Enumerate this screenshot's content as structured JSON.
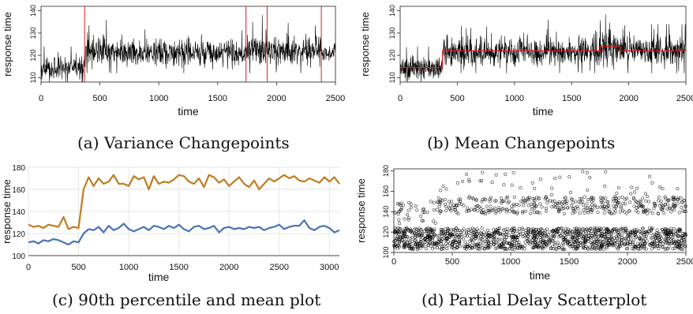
{
  "captions": {
    "a": "(a) Variance Changepoints",
    "b": "(b) Mean Changepoints",
    "c": "(c) 90th percentile and mean plot",
    "d": "(d) Partial Delay Scatterplot"
  },
  "chart_data": [
    {
      "id": "a",
      "type": "line",
      "title": "",
      "xlabel": "time",
      "ylabel": "response time",
      "xlim": [
        0,
        2500
      ],
      "ylim": [
        108,
        142
      ],
      "x_ticks": [
        0,
        500,
        1000,
        1500,
        2000,
        2500
      ],
      "y_ticks": [
        110,
        120,
        130,
        140
      ],
      "grid": false,
      "series": [
        {
          "color": "#000000",
          "segments": [
            {
              "x0": 0,
              "x1": 370,
              "mean": 114,
              "sd": 2.5,
              "spike": 0.04,
              "lo": 108,
              "hi": 124
            },
            {
              "x0": 370,
              "x1": 1740,
              "mean": 121,
              "sd": 3.0,
              "spike": 0.05,
              "lo": 112,
              "hi": 136
            },
            {
              "x0": 1740,
              "x1": 1920,
              "mean": 122,
              "sd": 3.8,
              "spike": 0.06,
              "lo": 112,
              "hi": 138
            },
            {
              "x0": 1920,
              "x1": 2380,
              "mean": 122,
              "sd": 3.2,
              "spike": 0.05,
              "lo": 112,
              "hi": 135
            },
            {
              "x0": 2380,
              "x1": 2500,
              "mean": 121,
              "sd": 1.8,
              "spike": 0.02,
              "lo": 115,
              "hi": 127
            }
          ]
        }
      ],
      "changepoints": [
        370,
        1740,
        1920,
        2380
      ],
      "changepoint_color": "#e41a1c"
    },
    {
      "id": "b",
      "type": "line",
      "title": "",
      "xlabel": "time",
      "ylabel": "response time",
      "xlim": [
        0,
        2500
      ],
      "ylim": [
        108,
        142
      ],
      "x_ticks": [
        0,
        500,
        1000,
        1500,
        2000,
        2500
      ],
      "y_ticks": [
        110,
        120,
        130,
        140
      ],
      "grid": false,
      "series": [
        {
          "color": "#000000",
          "segments": [
            {
              "x0": 0,
              "x1": 370,
              "mean": 114,
              "sd": 2.5,
              "spike": 0.04,
              "lo": 108,
              "hi": 124
            },
            {
              "x0": 370,
              "x1": 1740,
              "mean": 121.5,
              "sd": 3.0,
              "spike": 0.05,
              "lo": 112,
              "hi": 136
            },
            {
              "x0": 1740,
              "x1": 1900,
              "mean": 123,
              "sd": 3.8,
              "spike": 0.06,
              "lo": 112,
              "hi": 142
            },
            {
              "x0": 1900,
              "x1": 2500,
              "mean": 122,
              "sd": 3.0,
              "spike": 0.05,
              "lo": 112,
              "hi": 134
            }
          ]
        }
      ],
      "mean_levels": [
        {
          "x0": 0,
          "x1": 370,
          "y": 114.5
        },
        {
          "x0": 370,
          "x1": 1750,
          "y": 122
        },
        {
          "x0": 1750,
          "x1": 1920,
          "y": 124
        },
        {
          "x0": 1920,
          "x1": 2500,
          "y": 122
        }
      ],
      "mean_color": "#e41a1c"
    },
    {
      "id": "c",
      "type": "line",
      "title": "",
      "xlabel": "time",
      "ylabel": "response time",
      "xlim": [
        0,
        3100
      ],
      "ylim": [
        100,
        180
      ],
      "x_ticks": [
        0,
        500,
        1000,
        1500,
        2000,
        2500,
        3000
      ],
      "y_ticks": [
        100,
        120,
        140,
        160,
        180
      ],
      "grid": true,
      "series": [
        {
          "color": "#c07c1e",
          "x": [
            0,
            50,
            100,
            150,
            200,
            250,
            300,
            350,
            400,
            450,
            500,
            550,
            600,
            650,
            700,
            750,
            800,
            850,
            900,
            950,
            1000,
            1050,
            1100,
            1150,
            1200,
            1250,
            1300,
            1350,
            1400,
            1450,
            1500,
            1550,
            1600,
            1650,
            1700,
            1750,
            1800,
            1850,
            1900,
            1950,
            2000,
            2050,
            2100,
            2150,
            2200,
            2250,
            2300,
            2350,
            2400,
            2450,
            2500,
            2550,
            2600,
            2650,
            2700,
            2750,
            2800,
            2850,
            2900,
            2950,
            3000,
            3050,
            3100
          ],
          "y": [
            128,
            126,
            127,
            125,
            128,
            127,
            126,
            135,
            124,
            126,
            125,
            160,
            171,
            163,
            170,
            165,
            167,
            173,
            165,
            165,
            163,
            172,
            169,
            171,
            160,
            172,
            165,
            167,
            166,
            169,
            173,
            172,
            167,
            165,
            170,
            162,
            173,
            171,
            166,
            169,
            163,
            167,
            171,
            165,
            162,
            168,
            160,
            165,
            170,
            167,
            170,
            173,
            170,
            172,
            168,
            167,
            170,
            168,
            166,
            171,
            167,
            171,
            165
          ]
        },
        {
          "color": "#4a72b8",
          "x": [
            0,
            50,
            100,
            150,
            200,
            250,
            300,
            350,
            400,
            450,
            500,
            550,
            600,
            650,
            700,
            750,
            800,
            850,
            900,
            950,
            1000,
            1050,
            1100,
            1150,
            1200,
            1250,
            1300,
            1350,
            1400,
            1450,
            1500,
            1550,
            1600,
            1650,
            1700,
            1750,
            1800,
            1850,
            1900,
            1950,
            2000,
            2050,
            2100,
            2150,
            2200,
            2250,
            2300,
            2350,
            2400,
            2450,
            2500,
            2550,
            2600,
            2650,
            2700,
            2750,
            2800,
            2850,
            2900,
            2950,
            3000,
            3050,
            3100
          ],
          "y": [
            112,
            113,
            111,
            114,
            113,
            115,
            114,
            112,
            110,
            113,
            112,
            120,
            124,
            123,
            126,
            121,
            127,
            123,
            125,
            129,
            124,
            122,
            124,
            126,
            123,
            127,
            126,
            124,
            127,
            125,
            128,
            124,
            122,
            126,
            127,
            124,
            125,
            127,
            121,
            125,
            126,
            124,
            125,
            124,
            126,
            125,
            126,
            123,
            125,
            126,
            128,
            124,
            126,
            127,
            127,
            132,
            125,
            123,
            126,
            127,
            125,
            121,
            123
          ]
        }
      ]
    },
    {
      "id": "d",
      "type": "scatter",
      "title": "",
      "xlabel": "time",
      "ylabel": "response time",
      "xlim": [
        0,
        2500
      ],
      "ylim": [
        100,
        182
      ],
      "x_ticks": [
        0,
        500,
        1000,
        1500,
        2000,
        2500
      ],
      "y_ticks": [
        100,
        120,
        140,
        160,
        180
      ],
      "grid": false,
      "point_style": "open circle",
      "clusters": [
        {
          "x0": 0,
          "x1": 2500,
          "y0": 103,
          "y1": 124,
          "count": 1300
        },
        {
          "x0": 0,
          "x1": 380,
          "y0": 127,
          "y1": 150,
          "count": 40
        },
        {
          "x0": 380,
          "x1": 2500,
          "y0": 138,
          "y1": 155,
          "count": 380
        },
        {
          "x0": 380,
          "x1": 2500,
          "y0": 155,
          "y1": 182,
          "count": 45
        }
      ]
    }
  ]
}
